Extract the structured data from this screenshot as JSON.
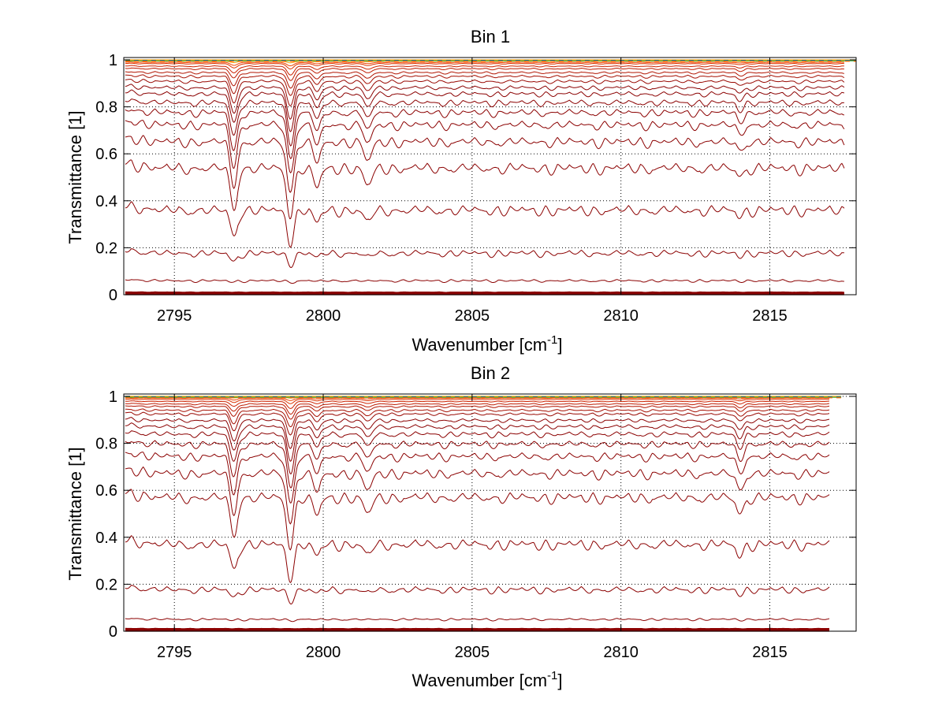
{
  "chart_data": [
    {
      "type": "line",
      "title": "Bin 1",
      "xlabel": "Wavenumber [cm",
      "xlabel_sup": "-1",
      "xlabel_end": "]",
      "ylabel": "Transmittance [1]",
      "xlim": [
        2793.3,
        2817.9
      ],
      "ylim": [
        0,
        1.01
      ],
      "xticks": [
        "2795",
        "2800",
        "2805",
        "2810",
        "2815"
      ],
      "yticks": [
        "0",
        "0.2",
        "0.4",
        "0.6",
        "0.8",
        "1"
      ],
      "grid": true,
      "x_end": 2817.5,
      "series_baselines": [
        0.0,
        0.01,
        0.065,
        0.19,
        0.38,
        0.56,
        0.67,
        0.74,
        0.79,
        0.83,
        0.865,
        0.89,
        0.915,
        0.935,
        0.95,
        0.965,
        0.975,
        0.985,
        0.99,
        0.995,
        1.0
      ],
      "absorption_lines": [
        {
          "x": 2797.0,
          "depth": 0.5
        },
        {
          "x": 2798.9,
          "depth": 0.6
        },
        {
          "x": 2799.8,
          "depth": 0.25
        },
        {
          "x": 2801.5,
          "depth": 0.25
        },
        {
          "x": 2814.0,
          "depth": 0.1
        }
      ],
      "colors": {
        "deep": "#8b0000",
        "mid": "#cc2200",
        "light": "#ff5500",
        "top": "#ff9900"
      }
    },
    {
      "type": "line",
      "title": "Bin 2",
      "xlabel": "Wavenumber [cm",
      "xlabel_sup": "-1",
      "xlabel_end": "]",
      "ylabel": "Transmittance [1]",
      "xlim": [
        2793.3,
        2817.9
      ],
      "ylim": [
        0,
        1.01
      ],
      "xticks": [
        "2795",
        "2800",
        "2805",
        "2810",
        "2815"
      ],
      "yticks": [
        "0",
        "0.2",
        "0.4",
        "0.6",
        "0.8",
        "1"
      ],
      "grid": true,
      "x_end": 2817.0,
      "series_baselines": [
        0.0,
        0.01,
        0.055,
        0.19,
        0.39,
        0.59,
        0.69,
        0.76,
        0.81,
        0.85,
        0.88,
        0.905,
        0.93,
        0.945,
        0.96,
        0.97,
        0.98,
        0.988,
        0.993,
        0.997,
        1.0
      ],
      "absorption_lines": [
        {
          "x": 2797.0,
          "depth": 0.45
        },
        {
          "x": 2798.9,
          "depth": 0.6
        },
        {
          "x": 2799.8,
          "depth": 0.22
        },
        {
          "x": 2801.5,
          "depth": 0.22
        },
        {
          "x": 2814.0,
          "depth": 0.2
        }
      ],
      "colors": {
        "deep": "#8b0000",
        "mid": "#cc2200",
        "light": "#ff5500",
        "top": "#ff9900"
      }
    }
  ]
}
